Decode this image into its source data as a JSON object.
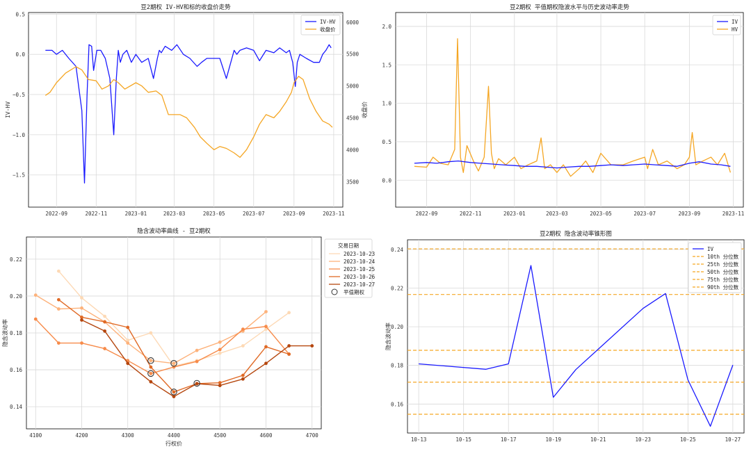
{
  "chart_data": [
    {
      "type": "line",
      "title": "豆2期权 IV-HV和标的收盘价走势",
      "xlabel": "",
      "ylabel": "IV-HV",
      "ylabel_right": "收盘价",
      "ylim": [
        -1.9,
        0.52
      ],
      "ylim_right": [
        3100,
        6150
      ],
      "x_ticks": [
        "2022-09",
        "2022-11",
        "2023-01",
        "2023-03",
        "2023-05",
        "2023-07",
        "2023-09",
        "2023-11"
      ],
      "y_ticks": [
        "0.5",
        "0.0",
        "−0.5",
        "−1.0",
        "−1.5"
      ],
      "y_ticks_right": [
        "6000",
        "5500",
        "5000",
        "4500",
        "4000",
        "3500"
      ],
      "legend_loc": "upper right",
      "series": [
        {
          "name": "IV-HV",
          "axis": "left",
          "color": "#1a1aff",
          "x": [
            "2022-08-15",
            "2022-08-25",
            "2022-09-01",
            "2022-09-10",
            "2022-09-20",
            "2022-10-01",
            "2022-10-10",
            "2022-10-14",
            "2022-10-18",
            "2022-10-21",
            "2022-10-25",
            "2022-10-28",
            "2022-11-02",
            "2022-11-08",
            "2022-11-15",
            "2022-11-22",
            "2022-11-28",
            "2022-12-02",
            "2022-12-05",
            "2022-12-08",
            "2022-12-12",
            "2022-12-18",
            "2022-12-25",
            "2023-01-01",
            "2023-01-10",
            "2023-01-20",
            "2023-01-28",
            "2023-02-03",
            "2023-02-06",
            "2023-02-09",
            "2023-02-15",
            "2023-02-25",
            "2023-03-05",
            "2023-03-15",
            "2023-03-25",
            "2023-04-05",
            "2023-04-12",
            "2023-04-20",
            "2023-05-01",
            "2023-05-10",
            "2023-05-20",
            "2023-06-01",
            "2023-06-05",
            "2023-06-10",
            "2023-06-20",
            "2023-07-01",
            "2023-07-10",
            "2023-07-20",
            "2023-08-01",
            "2023-08-10",
            "2023-08-20",
            "2023-08-25",
            "2023-08-30",
            "2023-09-03",
            "2023-09-06",
            "2023-09-10",
            "2023-09-20",
            "2023-10-01",
            "2023-10-10",
            "2023-10-15",
            "2023-10-20",
            "2023-10-25",
            "2023-10-28"
          ],
          "values": [
            0.05,
            0.05,
            0.0,
            0.05,
            -0.05,
            -0.15,
            -0.7,
            -1.6,
            -0.5,
            0.12,
            0.1,
            -0.2,
            0.05,
            0.05,
            -0.05,
            -0.3,
            -1.0,
            -0.3,
            0.05,
            -0.1,
            0.0,
            0.05,
            -0.1,
            0.0,
            -0.1,
            -0.05,
            -0.3,
            -0.05,
            0.05,
            0.02,
            0.1,
            0.05,
            0.12,
            0.0,
            -0.05,
            -0.15,
            -0.1,
            -0.05,
            -0.05,
            -0.05,
            -0.3,
            0.05,
            0.0,
            0.05,
            0.08,
            0.05,
            -0.08,
            0.05,
            0.02,
            0.08,
            0.02,
            0.05,
            -0.1,
            -0.4,
            -0.1,
            0.0,
            -0.05,
            -0.1,
            -0.1,
            0.0,
            0.05,
            0.12,
            0.08
          ]
        },
        {
          "name": "收盘价",
          "axis": "right",
          "color": "#f5a623",
          "x": [
            "2022-08-15",
            "2022-08-22",
            "2022-09-01",
            "2022-09-15",
            "2022-10-01",
            "2022-10-10",
            "2022-10-20",
            "2022-11-01",
            "2022-11-10",
            "2022-11-20",
            "2022-11-28",
            "2022-12-05",
            "2022-12-15",
            "2023-01-01",
            "2023-01-10",
            "2023-01-20",
            "2023-02-01",
            "2023-02-10",
            "2023-02-20",
            "2023-03-01",
            "2023-03-10",
            "2023-03-20",
            "2023-04-01",
            "2023-04-10",
            "2023-04-20",
            "2023-05-01",
            "2023-05-10",
            "2023-05-20",
            "2023-06-01",
            "2023-06-10",
            "2023-06-20",
            "2023-07-01",
            "2023-07-10",
            "2023-07-20",
            "2023-08-01",
            "2023-08-10",
            "2023-08-20",
            "2023-08-28",
            "2023-09-01",
            "2023-09-08",
            "2023-09-15",
            "2023-09-25",
            "2023-10-05",
            "2023-10-15",
            "2023-10-25",
            "2023-10-30"
          ],
          "values": [
            4850,
            4900,
            5050,
            5200,
            5300,
            5250,
            5100,
            5080,
            4950,
            5000,
            5100,
            5050,
            4950,
            5050,
            5000,
            4900,
            4920,
            4850,
            4550,
            4550,
            4550,
            4500,
            4350,
            4200,
            4100,
            4000,
            4050,
            4020,
            3950,
            3880,
            4000,
            4200,
            4400,
            4550,
            4500,
            4600,
            4750,
            4900,
            5050,
            5150,
            5100,
            4800,
            4600,
            4450,
            4400,
            4350
          ]
        }
      ]
    },
    {
      "type": "line",
      "title": "豆2期权 平值期权隐波水平与历史波动率走势",
      "xlabel": "",
      "ylabel": "",
      "ylim": [
        -0.35,
        2.18
      ],
      "x_ticks": [
        "2022-09",
        "2022-11",
        "2023-01",
        "2023-03",
        "2023-05",
        "2023-07",
        "2023-09",
        "2023-11"
      ],
      "y_ticks": [
        "2.0",
        "1.5",
        "1.0",
        "0.5",
        "0.0"
      ],
      "legend_loc": "upper right",
      "series": [
        {
          "name": "IV",
          "color": "#1a1aff",
          "x": [
            "2022-08-15",
            "2022-09-01",
            "2022-09-15",
            "2022-10-01",
            "2022-10-15",
            "2022-11-01",
            "2022-11-15",
            "2022-12-01",
            "2022-12-15",
            "2023-01-01",
            "2023-01-15",
            "2023-02-01",
            "2023-02-15",
            "2023-03-01",
            "2023-03-15",
            "2023-04-01",
            "2023-04-15",
            "2023-05-01",
            "2023-05-15",
            "2023-06-01",
            "2023-06-15",
            "2023-07-01",
            "2023-07-15",
            "2023-08-01",
            "2023-08-15",
            "2023-09-01",
            "2023-09-15",
            "2023-10-01",
            "2023-10-15",
            "2023-10-28"
          ],
          "values": [
            0.22,
            0.23,
            0.22,
            0.24,
            0.25,
            0.23,
            0.22,
            0.21,
            0.2,
            0.19,
            0.18,
            0.18,
            0.17,
            0.16,
            0.17,
            0.18,
            0.18,
            0.19,
            0.2,
            0.19,
            0.2,
            0.21,
            0.2,
            0.19,
            0.18,
            0.22,
            0.24,
            0.21,
            0.2,
            0.18
          ]
        },
        {
          "name": "HV",
          "color": "#f5a623",
          "x": [
            "2022-08-15",
            "2022-09-01",
            "2022-09-10",
            "2022-09-20",
            "2022-10-01",
            "2022-10-10",
            "2022-10-14",
            "2022-10-18",
            "2022-10-22",
            "2022-10-27",
            "2022-11-05",
            "2022-11-12",
            "2022-11-20",
            "2022-11-26",
            "2022-11-30",
            "2022-12-04",
            "2022-12-10",
            "2022-12-20",
            "2023-01-01",
            "2023-01-10",
            "2023-01-20",
            "2023-02-01",
            "2023-02-07",
            "2023-02-12",
            "2023-02-20",
            "2023-03-01",
            "2023-03-10",
            "2023-03-20",
            "2023-04-01",
            "2023-04-10",
            "2023-04-20",
            "2023-05-01",
            "2023-05-15",
            "2023-06-01",
            "2023-06-15",
            "2023-07-01",
            "2023-07-05",
            "2023-07-12",
            "2023-07-20",
            "2023-08-01",
            "2023-08-15",
            "2023-08-25",
            "2023-09-01",
            "2023-09-05",
            "2023-09-10",
            "2023-09-20",
            "2023-10-01",
            "2023-10-10",
            "2023-10-20",
            "2023-10-28"
          ],
          "values": [
            0.18,
            0.17,
            0.3,
            0.22,
            0.2,
            0.4,
            1.84,
            0.3,
            0.1,
            0.45,
            0.25,
            0.12,
            0.3,
            1.22,
            0.35,
            0.15,
            0.28,
            0.2,
            0.3,
            0.15,
            0.2,
            0.25,
            0.55,
            0.15,
            0.2,
            0.1,
            0.2,
            0.05,
            0.15,
            0.25,
            0.1,
            0.35,
            0.2,
            0.2,
            0.25,
            0.3,
            0.15,
            0.4,
            0.2,
            0.25,
            0.15,
            0.2,
            0.3,
            0.62,
            0.2,
            0.25,
            0.3,
            0.2,
            0.35,
            0.1
          ]
        }
      ]
    },
    {
      "type": "line",
      "title": "隐含波动率曲线 - 豆2期权",
      "xlabel": "行权价",
      "ylabel": "隐含波动率",
      "xlim": [
        4080,
        4720
      ],
      "ylim": [
        0.128,
        0.232
      ],
      "x_ticks": [
        "4100",
        "4200",
        "4300",
        "4400",
        "4500",
        "4600",
        "4700"
      ],
      "y_ticks": [
        "0.22",
        "0.20",
        "0.18",
        "0.16",
        "0.14"
      ],
      "legend_title": "交易日期",
      "legend_loc": "upper right",
      "atm_label": "平值期权",
      "atm_points": [
        {
          "x": 4350,
          "y": 0.165
        },
        {
          "x": 4350,
          "y": 0.158
        },
        {
          "x": 4400,
          "y": 0.1635
        },
        {
          "x": 4400,
          "y": 0.148
        },
        {
          "x": 4450,
          "y": 0.1527
        }
      ],
      "series": [
        {
          "name": "2023-10-23",
          "color": "#fdd9b5",
          "x": [
            4150,
            4200,
            4250,
            4300,
            4350,
            4400,
            4450,
            4500,
            4550,
            4600,
            4650
          ],
          "values": [
            0.2135,
            0.199,
            0.189,
            0.176,
            0.18,
            0.162,
            0.165,
            0.169,
            0.173,
            0.182,
            0.191
          ]
        },
        {
          "name": "2023-10-24",
          "color": "#fdb27b",
          "x": [
            4100,
            4150,
            4200,
            4250,
            4300,
            4350,
            4400,
            4450,
            4500,
            4550,
            4600
          ],
          "values": [
            0.2005,
            0.193,
            0.1935,
            0.186,
            0.1745,
            0.165,
            0.1635,
            0.1705,
            0.175,
            0.181,
            0.1915
          ]
        },
        {
          "name": "2023-10-25",
          "color": "#f78b4a",
          "x": [
            4100,
            4150,
            4200,
            4250,
            4300,
            4350,
            4400,
            4450,
            4500,
            4550,
            4600,
            4650
          ],
          "values": [
            0.1875,
            0.1745,
            0.1745,
            0.1715,
            0.165,
            0.158,
            0.1615,
            0.1645,
            0.171,
            0.182,
            0.1835,
            0.1685
          ]
        },
        {
          "name": "2023-10-26",
          "color": "#e06a26",
          "x": [
            4150,
            4200,
            4250,
            4300,
            4350,
            4400,
            4450,
            4500,
            4550,
            4600,
            4650
          ],
          "values": [
            0.198,
            0.1885,
            0.186,
            0.183,
            0.1615,
            0.148,
            0.1525,
            0.153,
            0.157,
            0.1725,
            0.1685
          ]
        },
        {
          "name": "2023-10-27",
          "color": "#b5470f",
          "x": [
            4200,
            4250,
            4300,
            4350,
            4400,
            4450,
            4500,
            4550,
            4600,
            4650,
            4700
          ],
          "values": [
            0.187,
            0.181,
            0.1635,
            0.1535,
            0.1455,
            0.1525,
            0.1515,
            0.155,
            0.1635,
            0.173,
            0.173
          ]
        }
      ]
    },
    {
      "type": "line",
      "title": "豆2期权 隐含波动率锥形图",
      "xlabel": "",
      "ylabel": "隐含波动率",
      "xlim": [
        "2023-10-12 12:00",
        "2023-10-27 12:00"
      ],
      "ylim": [
        0.145,
        0.245
      ],
      "x_ticks": [
        "10-13",
        "10-15",
        "10-17",
        "10-19",
        "10-21",
        "10-23",
        "10-25",
        "10-27"
      ],
      "y_ticks": [
        "0.24",
        "0.22",
        "0.20",
        "0.18",
        "0.16"
      ],
      "legend_loc": "upper right",
      "series": [
        {
          "name": "IV",
          "color": "#1a1aff",
          "x": [
            "2023-10-13",
            "2023-10-16",
            "2023-10-17",
            "2023-10-18",
            "2023-10-19",
            "2023-10-20",
            "2023-10-23",
            "2023-10-24",
            "2023-10-25",
            "2023-10-26",
            "2023-10-27"
          ],
          "values": [
            0.1808,
            0.178,
            0.1808,
            0.2317,
            0.1635,
            0.1778,
            0.2095,
            0.2172,
            0.1725,
            0.1485,
            0.1802
          ]
        }
      ],
      "percentiles": [
        {
          "name": "10th 分位数",
          "value": 0.1547
        },
        {
          "name": "25th 分位数",
          "value": 0.1713
        },
        {
          "name": "50th 分位数",
          "value": 0.1878
        },
        {
          "name": "75th 分位数",
          "value": 0.2167
        },
        {
          "name": "90th 分位数",
          "value": 0.2403
        }
      ],
      "percentile_color": "#f5a623"
    }
  ]
}
